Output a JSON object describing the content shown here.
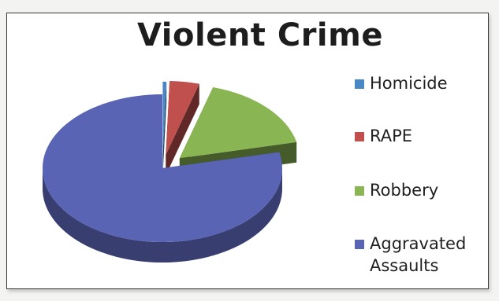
{
  "chart_data": {
    "type": "pie",
    "title": "Violent Crime",
    "categories": [
      "Homicide",
      "RAPE",
      "Robbery",
      "Aggravated Assaults"
    ],
    "values": [
      0.5,
      4,
      17,
      78.5
    ],
    "value_unit": "percent (estimated)",
    "colors": [
      "#4a87c6",
      "#c0504d",
      "#8ab553",
      "#5a64b4"
    ],
    "exploded": true,
    "three_d": true,
    "legend_position": "right"
  }
}
